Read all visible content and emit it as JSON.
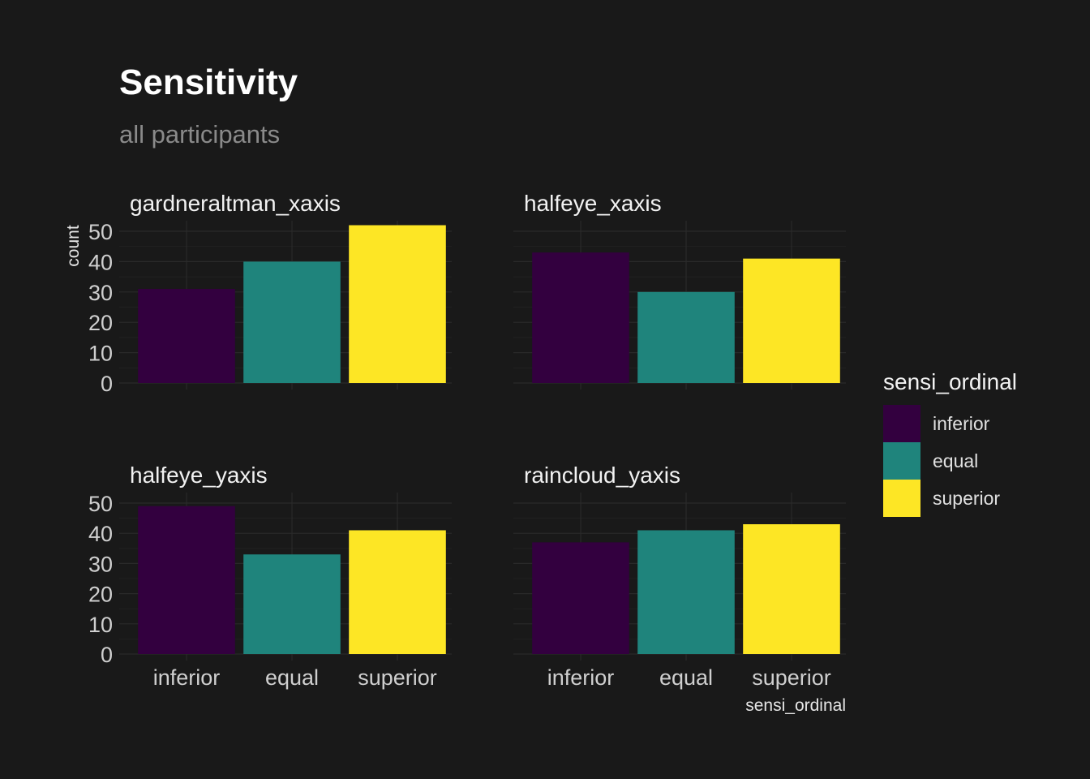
{
  "colors": {
    "background": "#191919",
    "inferior": "#33003f",
    "equal": "#1f847c",
    "superior": "#fde625"
  },
  "chart_data": {
    "type": "bar",
    "title": "Sensitivity",
    "subtitle": "all participants",
    "xlabel": "sensi_ordinal",
    "ylabel": "count",
    "ylim": [
      0,
      50
    ],
    "yticks": [
      0,
      10,
      20,
      30,
      40,
      50
    ],
    "categories": [
      "inferior",
      "equal",
      "superior"
    ],
    "grid": true,
    "legend": {
      "title": "sensi_ordinal",
      "position": "right",
      "entries": [
        "inferior",
        "equal",
        "superior"
      ]
    },
    "facets": [
      {
        "name": "gardneraltman_xaxis",
        "values": [
          31,
          40,
          52
        ]
      },
      {
        "name": "halfeye_xaxis",
        "values": [
          43,
          30,
          41
        ]
      },
      {
        "name": "halfeye_yaxis",
        "values": [
          49,
          33,
          41
        ]
      },
      {
        "name": "raincloud_yaxis",
        "values": [
          37,
          41,
          43
        ]
      }
    ]
  }
}
